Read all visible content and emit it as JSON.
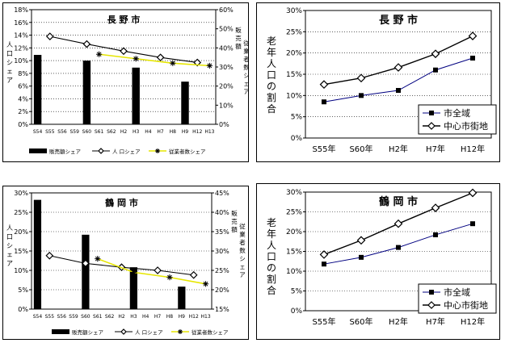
{
  "chart_data": [
    {
      "type": "bar",
      "title": "長 野 市",
      "categories": [
        "S54",
        "S55",
        "S56",
        "S59",
        "S60",
        "S61",
        "S62",
        "H2",
        "H3",
        "H4",
        "H7",
        "H8",
        "H9",
        "H12",
        "H13"
      ],
      "left_axis_label": "人口シェア",
      "right_axis_label": "販売額シェア 従業者数シェア",
      "left_ylim": [
        0,
        18
      ],
      "left_ticks": [
        "0%",
        "2%",
        "4%",
        "6%",
        "8%",
        "10%",
        "12%",
        "14%",
        "16%",
        "18%"
      ],
      "right_ylim": [
        0,
        60
      ],
      "right_ticks": [
        "0%",
        "10%",
        "20%",
        "30%",
        "40%",
        "50%",
        "60%"
      ],
      "legend": [
        "販売額シェア",
        "人 口シェア",
        "従業者数シェア"
      ],
      "series": [
        {
          "name": "販売額シェア",
          "axis": "left",
          "style": "bar",
          "color": "#000000",
          "points": [
            [
              0,
              10.9
            ],
            [
              4,
              10.0
            ],
            [
              8,
              8.9
            ],
            [
              12,
              6.7
            ]
          ]
        },
        {
          "name": "人 口シェア",
          "axis": "left",
          "style": "line-diamond",
          "color": "#000000",
          "points": [
            [
              1,
              13.8
            ],
            [
              4,
              12.6
            ],
            [
              7,
              11.5
            ],
            [
              10,
              10.5
            ],
            [
              13,
              9.7
            ]
          ]
        },
        {
          "name": "従業者数シェア",
          "axis": "left",
          "style": "line-star",
          "color": "#e6e600",
          "points": [
            [
              5,
              11.0
            ],
            [
              8,
              10.3
            ],
            [
              11,
              9.6
            ],
            [
              14,
              9.2
            ]
          ]
        }
      ]
    },
    {
      "type": "line",
      "title": "長 野 市",
      "ylabel": "老年人口の割合",
      "categories": [
        "S55年",
        "S60年",
        "H2年",
        "H7年",
        "H12年"
      ],
      "ylim": [
        0,
        30
      ],
      "yticks": [
        "0%",
        "5%",
        "10%",
        "15%",
        "20%",
        "25%",
        "30%"
      ],
      "legend": [
        "市全域",
        "中心市街地"
      ],
      "series": [
        {
          "name": "市全域",
          "marker": "square",
          "color": "#000080",
          "values": [
            8.5,
            10.0,
            11.2,
            16.0,
            18.8
          ]
        },
        {
          "name": "中心市街地",
          "marker": "diamond",
          "color": "#000000",
          "values": [
            12.6,
            14.1,
            16.6,
            19.8,
            24.0
          ]
        }
      ]
    },
    {
      "type": "bar",
      "title": "鶴 岡 市",
      "categories": [
        "S54",
        "S55",
        "S56",
        "S59",
        "S60",
        "S61",
        "S62",
        "H2",
        "H3",
        "H4",
        "H7",
        "H8",
        "H9",
        "H12",
        "H13"
      ],
      "left_axis_label": "人口シェア",
      "right_axis_label": "販売額シェア 従業者数シェア",
      "left_ylim": [
        0,
        30
      ],
      "left_ticks": [
        "0%",
        "5%",
        "10%",
        "15%",
        "20%",
        "25%",
        "30%"
      ],
      "right_ylim": [
        15,
        45
      ],
      "right_ticks": [
        "15%",
        "20%",
        "25%",
        "30%",
        "35%",
        "40%",
        "45%"
      ],
      "legend": [
        "販売額シェア",
        "人 口シェア",
        "従業者数シェア"
      ],
      "series": [
        {
          "name": "販売額シェア",
          "axis": "left",
          "style": "bar",
          "color": "#000000",
          "points": [
            [
              0,
              28.2
            ],
            [
              4,
              19.2
            ],
            [
              8,
              10.8
            ],
            [
              12,
              5.8
            ]
          ]
        },
        {
          "name": "人 口シェア",
          "axis": "left",
          "style": "line-diamond",
          "color": "#000000",
          "points": [
            [
              1,
              13.8
            ],
            [
              4,
              11.8
            ],
            [
              7,
              10.8
            ],
            [
              10,
              10.0
            ],
            [
              13,
              8.8
            ]
          ]
        },
        {
          "name": "従業者数シェア",
          "axis": "left",
          "style": "line-star",
          "color": "#e6e600",
          "points": [
            [
              5,
              13.0
            ],
            [
              8,
              9.5
            ],
            [
              11,
              8.2
            ],
            [
              14,
              6.5
            ]
          ]
        }
      ]
    },
    {
      "type": "line",
      "title": "鶴 岡 市",
      "ylabel": "老年人口の割合",
      "categories": [
        "S55年",
        "S60年",
        "H2年",
        "H7年",
        "H12年"
      ],
      "ylim": [
        0,
        30
      ],
      "yticks": [
        "0%",
        "5%",
        "10%",
        "15%",
        "20%",
        "25%",
        "30%"
      ],
      "legend": [
        "市全域",
        "中心市街地"
      ],
      "series": [
        {
          "name": "市全域",
          "marker": "square",
          "color": "#000080",
          "values": [
            11.8,
            13.5,
            16.0,
            19.2,
            22.0
          ]
        },
        {
          "name": "中心市街地",
          "marker": "diamond",
          "color": "#000000",
          "values": [
            14.2,
            17.8,
            22.0,
            26.0,
            29.8
          ]
        }
      ]
    }
  ]
}
